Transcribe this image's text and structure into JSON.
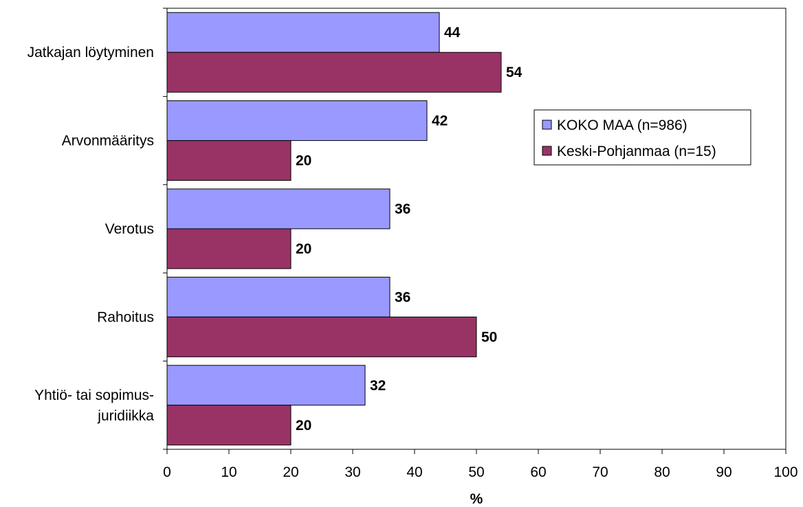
{
  "chart_data": {
    "type": "bar",
    "orientation": "horizontal",
    "categories": [
      [
        "Jatkajan löytyminen"
      ],
      [
        "Arvonmääritys"
      ],
      [
        "Verotus"
      ],
      [
        "Rahoitus"
      ],
      [
        "Yhtiö- tai sopimus-",
        "juridiikka"
      ]
    ],
    "series": [
      {
        "name": "KOKO MAA (n=986)",
        "color": "#9999ff",
        "values": [
          44,
          42,
          36,
          36,
          32
        ]
      },
      {
        "name": "Keski-Pohjanmaa (n=15)",
        "color": "#993366",
        "values": [
          54,
          20,
          20,
          50,
          20
        ]
      }
    ],
    "xlabel": "%",
    "xlim": [
      0,
      100
    ],
    "xticks": [
      0,
      10,
      20,
      30,
      40,
      50,
      60,
      70,
      80,
      90,
      100
    ],
    "grid": false,
    "legend_position": "right"
  }
}
